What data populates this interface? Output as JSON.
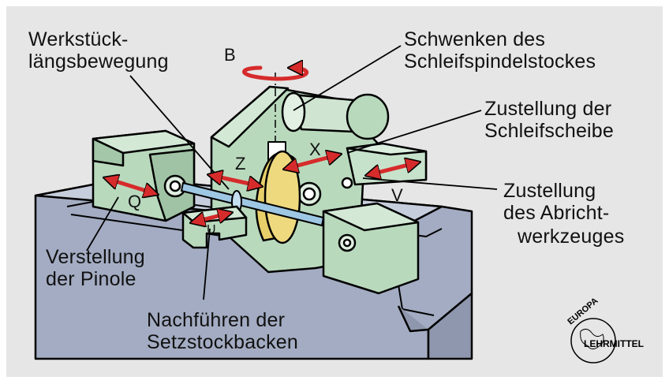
{
  "labels": {
    "werkstueck_1": "Werkstück-",
    "werkstueck_2": "längsbewegung",
    "schwenken_1": "Schwenken des",
    "schwenken_2": "Schleifspindelstockes",
    "zustellung_scheibe_1": "Zustellung der",
    "zustellung_scheibe_2": "Schleifscheibe",
    "zustellung_abricht_1": "Zustellung",
    "zustellung_abricht_2": "des  Abricht-",
    "zustellung_abricht_3": "werkzeuges",
    "verstellung_1": "Verstellung",
    "verstellung_2": "der Pinole",
    "nachfuehren_1": "Nachführen der",
    "nachfuehren_2": "Setzstockbacken"
  },
  "axes": {
    "b": "B",
    "x": "X",
    "z": "Z",
    "q": "Q",
    "v": "V",
    "u": "U"
  },
  "logo": {
    "top": "EUROPA",
    "bottom": "LEHRMITTEL"
  },
  "colors": {
    "machine_green": "#b9d9bd",
    "bed_blue": "#a3acc2",
    "wheel_yellow": "#e7cf6a",
    "arrow_red": "#d62b2b",
    "workpiece_blue": "#9ec7e3"
  }
}
